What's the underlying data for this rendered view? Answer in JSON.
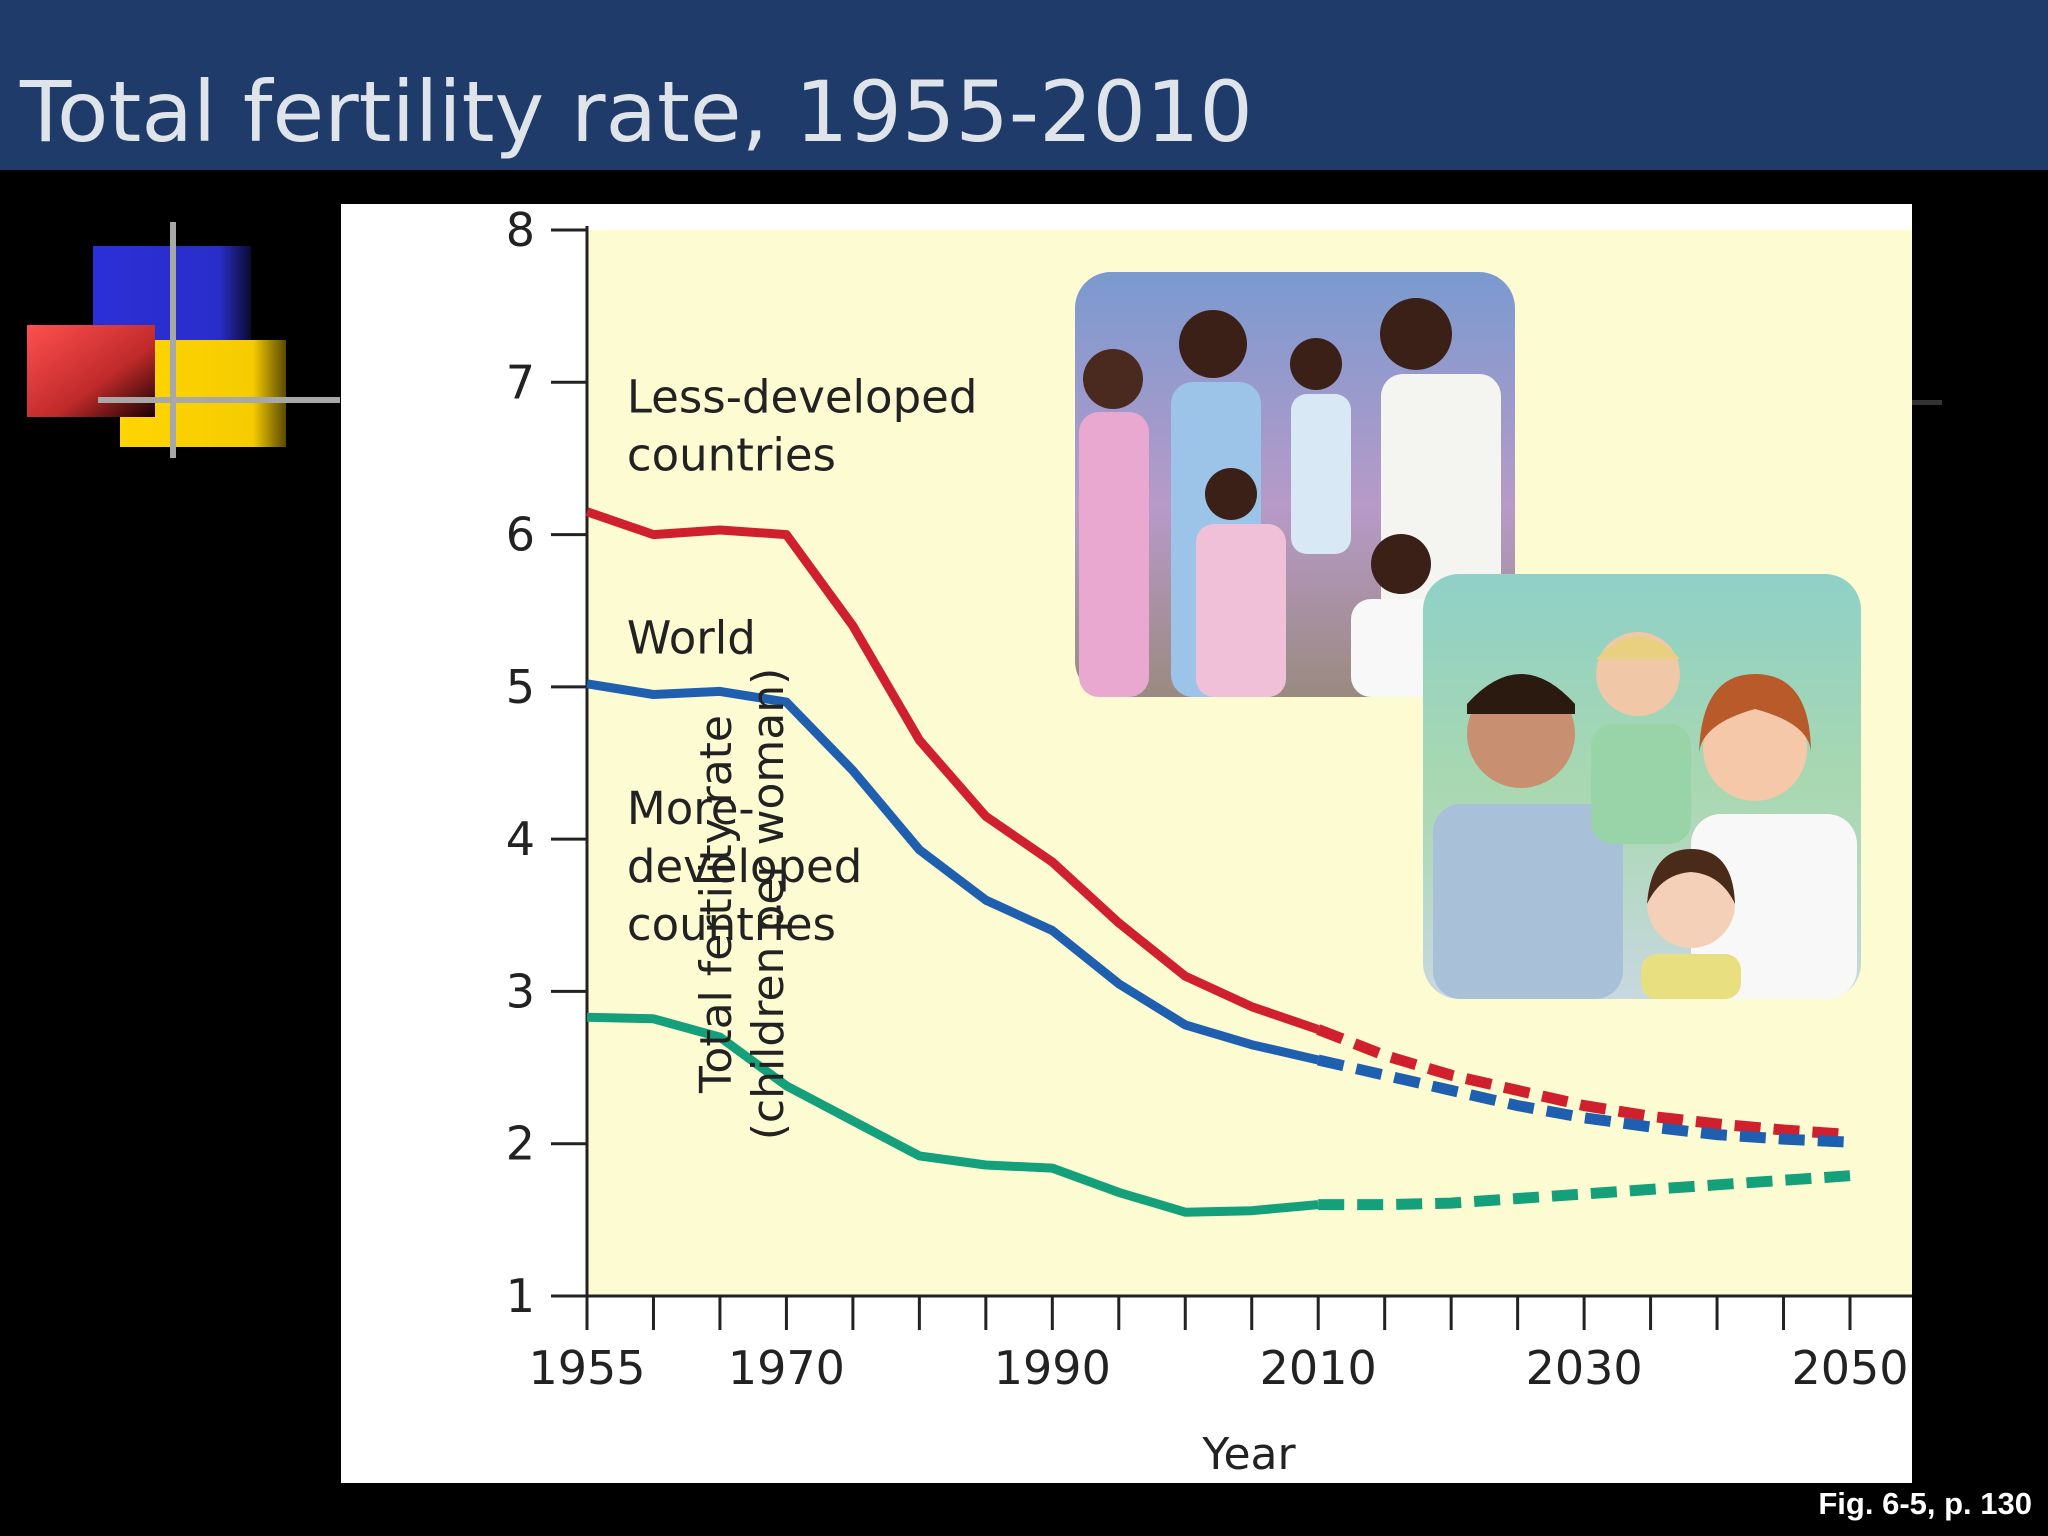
{
  "slide": {
    "title": "Total fertility rate, 1955-2010",
    "footer": "Fig. 6-5, p. 130",
    "title_bar_color": "#1f3b6a"
  },
  "decoration": {
    "colors": {
      "blue": "#2b2fd8",
      "red": "#e23c3c",
      "yellow": "#ffd500",
      "line": "#a8a8a8"
    }
  },
  "photos": [
    {
      "name": "large-family-photo",
      "description_icon": "family-photo-icon"
    },
    {
      "name": "small-family-photo",
      "description_icon": "family-photo-icon"
    }
  ],
  "chart_data": {
    "type": "line",
    "xlabel": "Year",
    "ylabel_line1": "Total fertility rate",
    "ylabel_line2": "(children per woman)",
    "xlim": [
      1955,
      2050
    ],
    "ylim": [
      1,
      8
    ],
    "x_ticks": [
      1955,
      1960,
      1965,
      1970,
      1975,
      1980,
      1985,
      1990,
      1995,
      2000,
      2005,
      2010,
      2015,
      2020,
      2025,
      2030,
      2035,
      2040,
      2045,
      2050
    ],
    "x_tick_labels": [
      {
        "value": 1955,
        "label": "1955"
      },
      {
        "value": 1970,
        "label": "1970"
      },
      {
        "value": 1990,
        "label": "1990"
      },
      {
        "value": 2010,
        "label": "2010"
      },
      {
        "value": 2030,
        "label": "2030"
      },
      {
        "value": 2050,
        "label": "2050"
      }
    ],
    "y_ticks": [
      1,
      2,
      3,
      4,
      5,
      6,
      7,
      8
    ],
    "y_tick_labels": [
      "1",
      "2",
      "3",
      "4",
      "5",
      "6",
      "7",
      "8"
    ],
    "projection_from": 2010,
    "plot_background": "#fdfbd2",
    "series": [
      {
        "name_lines": [
          "Less-developed",
          "countries"
        ],
        "color": "#d0202e",
        "label_anchor": {
          "x": 1958,
          "y": 6.8
        },
        "points": [
          [
            1955,
            6.15
          ],
          [
            1960,
            6.0
          ],
          [
            1965,
            6.03
          ],
          [
            1970,
            6.0
          ],
          [
            1975,
            5.4
          ],
          [
            1980,
            4.65
          ],
          [
            1985,
            4.15
          ],
          [
            1990,
            3.85
          ],
          [
            1995,
            3.45
          ],
          [
            2000,
            3.1
          ],
          [
            2005,
            2.9
          ],
          [
            2010,
            2.75
          ],
          [
            2015,
            2.58
          ],
          [
            2020,
            2.45
          ],
          [
            2025,
            2.35
          ],
          [
            2030,
            2.25
          ],
          [
            2035,
            2.18
          ],
          [
            2040,
            2.13
          ],
          [
            2045,
            2.09
          ],
          [
            2050,
            2.06
          ]
        ]
      },
      {
        "name_lines": [
          "World"
        ],
        "color": "#1f5fb0",
        "label_anchor": {
          "x": 1958,
          "y": 5.22
        },
        "points": [
          [
            1955,
            5.02
          ],
          [
            1960,
            4.95
          ],
          [
            1965,
            4.97
          ],
          [
            1970,
            4.9
          ],
          [
            1975,
            4.45
          ],
          [
            1980,
            3.93
          ],
          [
            1985,
            3.6
          ],
          [
            1990,
            3.4
          ],
          [
            1995,
            3.05
          ],
          [
            2000,
            2.78
          ],
          [
            2005,
            2.65
          ],
          [
            2010,
            2.55
          ],
          [
            2015,
            2.45
          ],
          [
            2020,
            2.35
          ],
          [
            2025,
            2.25
          ],
          [
            2030,
            2.17
          ],
          [
            2035,
            2.11
          ],
          [
            2040,
            2.06
          ],
          [
            2045,
            2.03
          ],
          [
            2050,
            2.01
          ]
        ]
      },
      {
        "name_lines": [
          "More-",
          "developed",
          "countries"
        ],
        "color": "#14a07a",
        "label_anchor": {
          "x": 1958,
          "y": 4.1
        },
        "points": [
          [
            1955,
            2.83
          ],
          [
            1960,
            2.82
          ],
          [
            1965,
            2.7
          ],
          [
            1970,
            2.38
          ],
          [
            1975,
            2.15
          ],
          [
            1980,
            1.92
          ],
          [
            1985,
            1.86
          ],
          [
            1990,
            1.84
          ],
          [
            1995,
            1.68
          ],
          [
            2000,
            1.55
          ],
          [
            2005,
            1.56
          ],
          [
            2010,
            1.6
          ],
          [
            2015,
            1.6
          ],
          [
            2020,
            1.61
          ],
          [
            2025,
            1.64
          ],
          [
            2030,
            1.67
          ],
          [
            2035,
            1.7
          ],
          [
            2040,
            1.73
          ],
          [
            2045,
            1.76
          ],
          [
            2050,
            1.79
          ]
        ]
      }
    ]
  }
}
